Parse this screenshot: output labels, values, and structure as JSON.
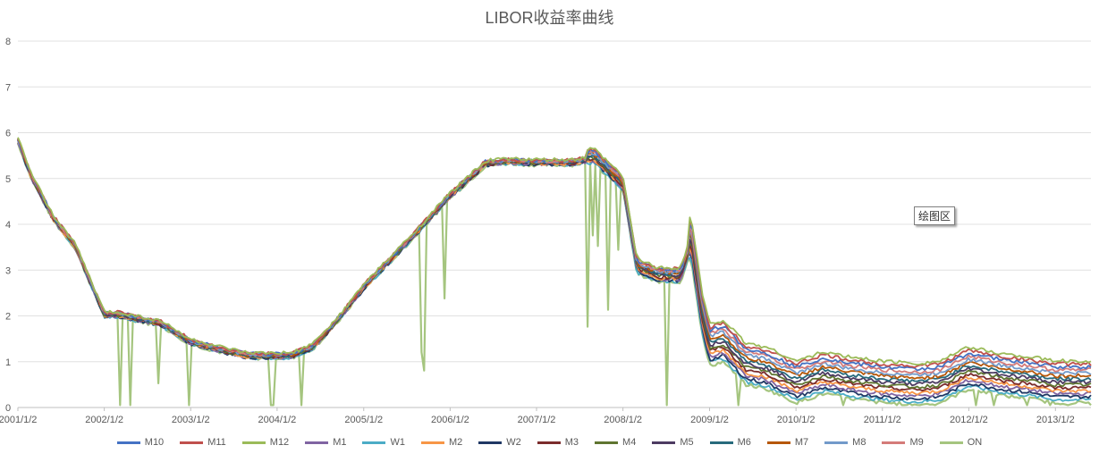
{
  "chart_data": {
    "type": "line",
    "title": "LIBOR收益率曲线",
    "xlabel": "",
    "ylabel": "",
    "ylim": [
      0,
      8
    ],
    "yticks": [
      0,
      1,
      2,
      3,
      4,
      5,
      6,
      7,
      8
    ],
    "xticks": [
      "2001/1/2",
      "2002/1/2",
      "2003/1/2",
      "2004/1/2",
      "2005/1/2",
      "2006/1/2",
      "2007/1/2",
      "2008/1/2",
      "2009/1/2",
      "2010/1/2",
      "2011/1/2",
      "2012/1/2",
      "2013/1/2"
    ],
    "xlim": [
      "2001/1/2",
      "2013/6/1"
    ],
    "grid": true,
    "legend_position": "bottom",
    "base_curve": {
      "dates": [
        "2001/1/2",
        "2001/3/1",
        "2001/6/1",
        "2001/9/1",
        "2002/1/2",
        "2002/3/1",
        "2002/6/1",
        "2002/9/1",
        "2003/1/2",
        "2003/6/1",
        "2003/9/1",
        "2004/1/2",
        "2004/3/1",
        "2004/6/1",
        "2004/9/1",
        "2005/1/2",
        "2005/6/1",
        "2005/9/1",
        "2006/1/2",
        "2006/6/1",
        "2006/9/1",
        "2007/1/2",
        "2007/6/1",
        "2007/9/1",
        "2008/1/2",
        "2008/3/1",
        "2008/6/1",
        "2008/9/1",
        "2008/10/15",
        "2008/12/1",
        "2009/1/2",
        "2009/3/1",
        "2009/6/1",
        "2009/9/1",
        "2010/1/2",
        "2010/5/1",
        "2010/8/1",
        "2011/1/2",
        "2011/6/1",
        "2011/9/1",
        "2012/1/2",
        "2012/6/1",
        "2012/9/1",
        "2013/1/2",
        "2013/6/1"
      ],
      "values": [
        5.8,
        5.0,
        4.1,
        3.5,
        2.0,
        2.0,
        1.9,
        1.8,
        1.4,
        1.2,
        1.1,
        1.1,
        1.1,
        1.3,
        1.8,
        2.6,
        3.4,
        3.9,
        4.6,
        5.3,
        5.35,
        5.32,
        5.32,
        5.4,
        4.8,
        3.0,
        2.8,
        2.8,
        3.5,
        1.8,
        1.1,
        1.2,
        0.7,
        0.6,
        0.3,
        0.5,
        0.4,
        0.3,
        0.25,
        0.3,
        0.6,
        0.45,
        0.4,
        0.3,
        0.3
      ]
    },
    "series": [
      {
        "name": "M10",
        "color": "#4472c4"
      },
      {
        "name": "M11",
        "color": "#c0504d"
      },
      {
        "name": "M12",
        "color": "#9bbb59"
      },
      {
        "name": "M1",
        "color": "#8064a2"
      },
      {
        "name": "W1",
        "color": "#4bacc6"
      },
      {
        "name": "M2",
        "color": "#f79646"
      },
      {
        "name": "W2",
        "color": "#1f3864"
      },
      {
        "name": "M3",
        "color": "#7b2c2c"
      },
      {
        "name": "M4",
        "color": "#5f7530"
      },
      {
        "name": "M5",
        "color": "#4d3b62"
      },
      {
        "name": "M6",
        "color": "#276a7c"
      },
      {
        "name": "M7",
        "color": "#b65708"
      },
      {
        "name": "M8",
        "color": "#729aca"
      },
      {
        "name": "M9",
        "color": "#d47b79"
      },
      {
        "name": "ON",
        "color": "#a5c57f"
      }
    ]
  },
  "plot_tooltip": "绘图区"
}
